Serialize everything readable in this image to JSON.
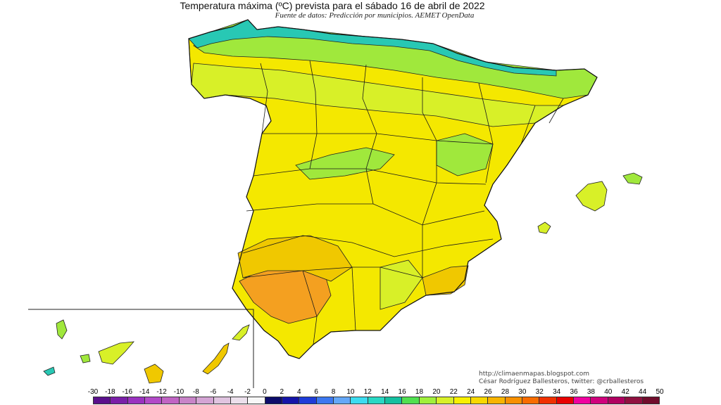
{
  "title": "Temperatura máxima (ºC) prevista para el sábado 16 de abril de 2022",
  "subtitle": "Fuente de datos: Predicción por municipios. AEMET OpenData",
  "credits": {
    "url": "http://climaenmapas.blogspot.com",
    "author": "César Rodríguez Ballesteros, twitter: @crballesteros"
  },
  "legend": {
    "labels": [
      "-30",
      "-18",
      "-16",
      "-14",
      "-12",
      "-10",
      "-8",
      "-6",
      "-4",
      "-2",
      "0",
      "2",
      "4",
      "6",
      "8",
      "10",
      "12",
      "14",
      "16",
      "18",
      "20",
      "22",
      "24",
      "26",
      "28",
      "30",
      "32",
      "34",
      "36",
      "38",
      "40",
      "42",
      "44",
      "50"
    ],
    "colors": [
      "#5a0f8c",
      "#7a1fa8",
      "#9a32c0",
      "#b24ac8",
      "#c064c4",
      "#c884c8",
      "#d4a4d4",
      "#e0c4e0",
      "#ece0ec",
      "#f8f8f8",
      "#0c0c6a",
      "#1414a8",
      "#1e3cd8",
      "#3c78f0",
      "#64a8f8",
      "#3cdcf0",
      "#28d8c4",
      "#14c0a0",
      "#50e050",
      "#a0f03c",
      "#d8f028",
      "#f8f000",
      "#f8d800",
      "#f8b400",
      "#f89000",
      "#f86c00",
      "#f03000",
      "#e80000",
      "#f000a0",
      "#d0007c",
      "#b00060",
      "#901040",
      "#700c2c"
    ]
  },
  "map": {
    "region_colors": {
      "coast_cool": "#28c8b4",
      "cool": "#a0e83c",
      "mild": "#d8f028",
      "warm": "#f4e800",
      "hot": "#f0c800",
      "hotter": "#f4a020"
    }
  }
}
